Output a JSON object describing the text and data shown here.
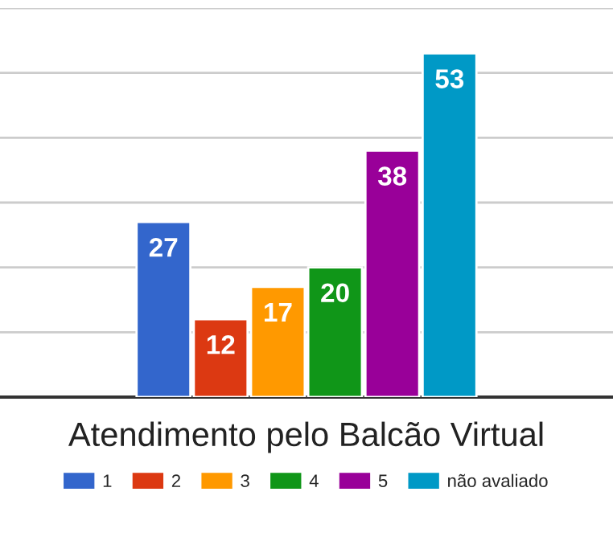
{
  "chart_data": {
    "type": "bar",
    "title": "Atendimento pelo Balcão Virtual",
    "categories": [
      null
    ],
    "series": [
      {
        "name": "1",
        "color": "#3366cc",
        "values": [
          27
        ]
      },
      {
        "name": "2",
        "color": "#dc3912",
        "values": [
          12
        ]
      },
      {
        "name": "3",
        "color": "#ff9900",
        "values": [
          17
        ]
      },
      {
        "name": "4",
        "color": "#109618",
        "values": [
          20
        ]
      },
      {
        "name": "5",
        "color": "#990099",
        "values": [
          38
        ]
      },
      {
        "name": "não avaliado",
        "color": "#0099c6",
        "values": [
          53
        ]
      }
    ],
    "ylim": [
      0,
      60
    ],
    "yticks": [
      0,
      10,
      20,
      30,
      40,
      50,
      60
    ],
    "tick_labels": false,
    "grid": "y",
    "data_labels": true,
    "legend": "bottom"
  }
}
